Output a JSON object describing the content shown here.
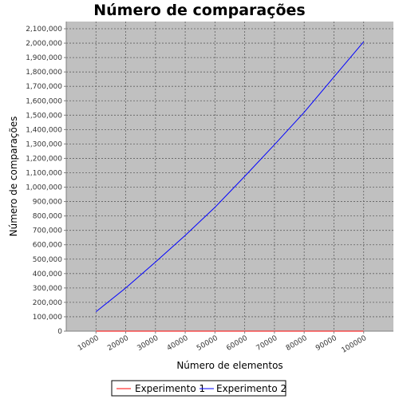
{
  "chart_data": {
    "type": "line",
    "title": "Número de comparações",
    "xlabel": "Número de elementos",
    "ylabel": "Número de comparações",
    "x": [
      10000,
      20000,
      30000,
      40000,
      50000,
      60000,
      70000,
      80000,
      90000,
      100000
    ],
    "xlim": [
      0,
      110000
    ],
    "ylim": [
      0,
      2150000
    ],
    "x_tick_labels": [
      "10000",
      "20000",
      "30000",
      "40000",
      "50000",
      "60000",
      "70000",
      "80000",
      "90000",
      "100000"
    ],
    "y_ticks": [
      0,
      100000,
      200000,
      300000,
      400000,
      500000,
      600000,
      700000,
      800000,
      900000,
      1000000,
      1100000,
      1200000,
      1300000,
      1400000,
      1500000,
      1600000,
      1700000,
      1800000,
      1900000,
      2000000,
      2100000
    ],
    "y_tick_labels": [
      "0",
      "100,000",
      "200,000",
      "300,000",
      "400,000",
      "500,000",
      "600,000",
      "700,000",
      "800,000",
      "900,000",
      "1,000,000",
      "1,100,000",
      "1,200,000",
      "1,300,000",
      "1,400,000",
      "1,500,000",
      "1,600,000",
      "1,700,000",
      "1,800,000",
      "1,900,000",
      "2,000,000",
      "2,100,000"
    ],
    "series": [
      {
        "name": "Experimento 1",
        "color": "#ff0000",
        "values": [
          0,
          0,
          0,
          0,
          0,
          0,
          0,
          0,
          0,
          0
        ]
      },
      {
        "name": "Experimento 2",
        "color": "#0000ff",
        "values": [
          135000,
          300000,
          480000,
          665000,
          860000,
          1075000,
          1295000,
          1520000,
          1765000,
          2010000
        ]
      }
    ],
    "grid": true,
    "legend": "bottom",
    "colors": {
      "plot_background": "#c0c0c0",
      "grid": "#606060"
    }
  }
}
